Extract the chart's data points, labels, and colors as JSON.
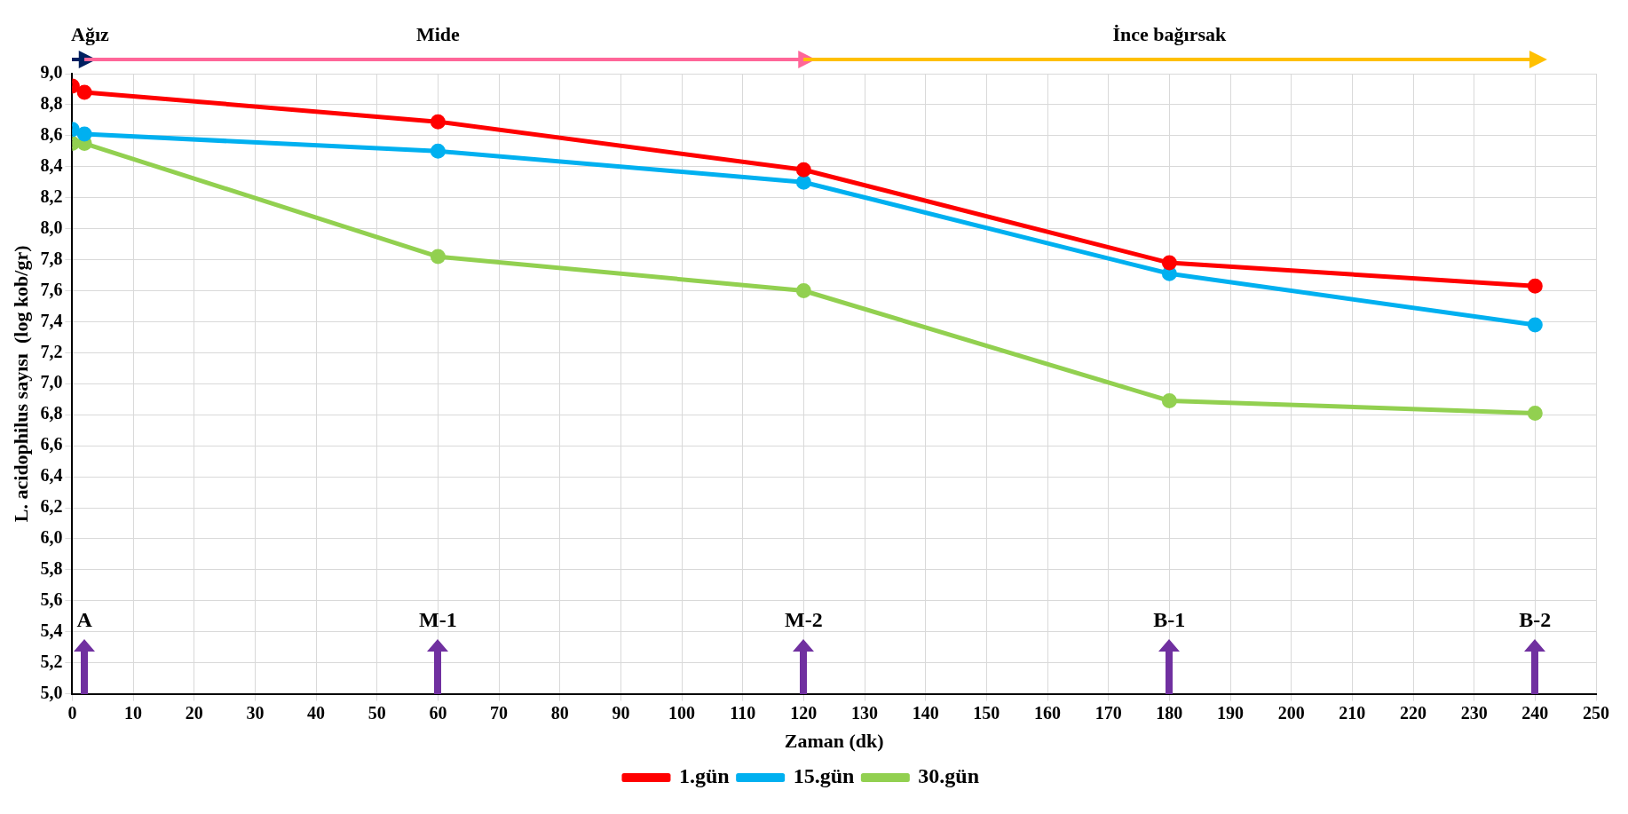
{
  "chart_data": {
    "type": "line",
    "xlabel": "Zaman (dk)",
    "ylabel": "L. acidophilus sayısı  (log kob/gr)",
    "x": [
      0,
      2,
      60,
      120,
      180,
      240
    ],
    "series": [
      {
        "name": "1.gün",
        "color": "#ff0000",
        "values": [
          8.92,
          8.88,
          8.69,
          8.38,
          7.78,
          7.63
        ]
      },
      {
        "name": "15.gün",
        "color": "#00b0f0",
        "values": [
          8.64,
          8.61,
          8.5,
          8.3,
          7.71,
          7.38
        ]
      },
      {
        "name": "30.gün",
        "color": "#92d050",
        "values": [
          8.55,
          8.55,
          7.82,
          7.6,
          6.89,
          6.81
        ]
      }
    ],
    "xlim": [
      0,
      250
    ],
    "xticks": [
      0,
      10,
      20,
      30,
      40,
      50,
      60,
      70,
      80,
      90,
      100,
      110,
      120,
      130,
      140,
      150,
      160,
      170,
      180,
      190,
      200,
      210,
      220,
      230,
      240,
      250
    ],
    "ylim": [
      5,
      9
    ],
    "yticks": [
      {
        "value": 5,
        "label": "5,0"
      },
      {
        "value": 5.2,
        "label": "5,2"
      },
      {
        "value": 5.4,
        "label": "5,4"
      },
      {
        "value": 5.6,
        "label": "5,6"
      },
      {
        "value": 5.8,
        "label": "5,8"
      },
      {
        "value": 6,
        "label": "6,0"
      },
      {
        "value": 6.2,
        "label": "6,2"
      },
      {
        "value": 6.4,
        "label": "6,4"
      },
      {
        "value": 6.6,
        "label": "6,6"
      },
      {
        "value": 6.8,
        "label": "6,8"
      },
      {
        "value": 7,
        "label": "7,0"
      },
      {
        "value": 7.2,
        "label": "7,2"
      },
      {
        "value": 7.4,
        "label": "7,4"
      },
      {
        "value": 7.6,
        "label": "7,6"
      },
      {
        "value": 7.8,
        "label": "7,8"
      },
      {
        "value": 8,
        "label": "8,0"
      },
      {
        "value": 8.2,
        "label": "8,2"
      },
      {
        "value": 8.4,
        "label": "8,4"
      },
      {
        "value": 8.6,
        "label": "8,6"
      },
      {
        "value": 8.8,
        "label": "8,8"
      },
      {
        "value": 9,
        "label": "9,0"
      }
    ],
    "grid": true,
    "legend": "bottom",
    "marker": "circle",
    "line_style": "solid",
    "annotations": [
      "Ağız",
      "Mide",
      "İnce bağırsak",
      "A",
      "M-1",
      "M-2",
      "B-1",
      "B-2"
    ]
  }
}
